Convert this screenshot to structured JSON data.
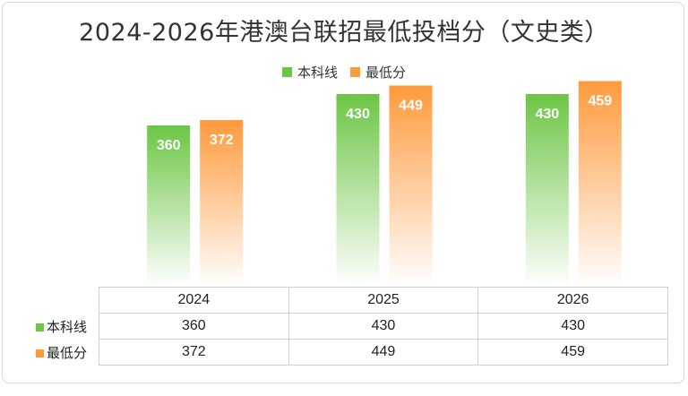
{
  "chart_data": {
    "type": "bar",
    "title": "2024-2026年港澳台联招最低投档分（文史类）",
    "categories": [
      "2024",
      "2025",
      "2026"
    ],
    "series": [
      {
        "name": "本科线",
        "values": [
          360,
          430,
          430
        ],
        "color": "#6cc644"
      },
      {
        "name": "最低分",
        "values": [
          372,
          449,
          459
        ],
        "color": "#ff9a3c"
      }
    ],
    "ylim": [
      0,
      600
    ],
    "grid": false,
    "legend": "top-center",
    "data_table": true
  }
}
